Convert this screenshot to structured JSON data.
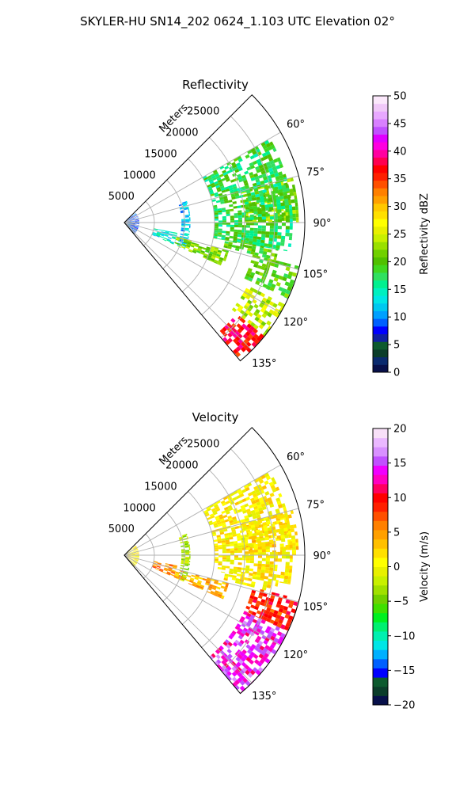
{
  "figure": {
    "title": "SKYLER-HU  SN14_202  0624_1.103 UTC Elevation 02°"
  },
  "chart_data": [
    {
      "type": "heatmap",
      "projection": "polar-sector",
      "title": "Reflectivity",
      "range_label": "Meters",
      "range_ticks": [
        5000,
        10000,
        15000,
        20000,
        25000
      ],
      "range_tick_labels": [
        "5000",
        "10000",
        "15000",
        "20000",
        "25000"
      ],
      "rmax": 30000,
      "azimuth_range_deg": [
        45,
        140
      ],
      "azimuth_ticks": [
        60,
        75,
        90,
        105,
        120,
        135
      ],
      "azimuth_tick_labels": [
        "60°",
        "75°",
        "90°",
        "105°",
        "120°",
        "135°"
      ],
      "grid": true,
      "colorbar": {
        "label": "Reflectivity dBZ",
        "min": 0,
        "max": 50,
        "ticks": [
          0,
          5,
          10,
          15,
          20,
          25,
          30,
          35,
          40,
          45,
          50
        ],
        "tick_labels": [
          "0",
          "5",
          "10",
          "15",
          "20",
          "25",
          "30",
          "35",
          "40",
          "45",
          "50"
        ],
        "colors": [
          "#08104a",
          "#0a2a6e",
          "#0b3d2a",
          "#0d5a2e",
          "#1020a0",
          "#0000ff",
          "#0060ff",
          "#00a0ff",
          "#00c8f0",
          "#00e6e6",
          "#00f0c0",
          "#00f090",
          "#30e060",
          "#40d820",
          "#50c000",
          "#70d000",
          "#9ae000",
          "#c8f000",
          "#e8f000",
          "#ffff00",
          "#ffe000",
          "#ffc800",
          "#ffa000",
          "#ff8000",
          "#ff5000",
          "#ff2000",
          "#ff0000",
          "#ff0050",
          "#ff00a0",
          "#ff00e0",
          "#e000ff",
          "#c050ff",
          "#d880ff",
          "#e8a8ff",
          "#f0c8f8",
          "#fbe8fb"
        ]
      },
      "features": [
        {
          "r": [
            500,
            2500
          ],
          "az": [
            50,
            140
          ],
          "value": 8
        },
        {
          "r": [
            9500,
            11000
          ],
          "az": [
            71,
            114
          ],
          "value": 12
        },
        {
          "r": [
            5000,
            9000
          ],
          "az": [
            101,
            114
          ],
          "value": 14
        },
        {
          "r": [
            9000,
            18000
          ],
          "az": [
            105,
            114
          ],
          "value": 22
        },
        {
          "r": [
            17000,
            26000
          ],
          "az": [
            98,
            104
          ],
          "value": 20
        },
        {
          "r": [
            20000,
            29000
          ],
          "az": [
            75,
            90
          ],
          "value": 22
        },
        {
          "r": [
            22000,
            30000
          ],
          "az": [
            104,
            115
          ],
          "value": 20
        },
        {
          "r": [
            23000,
            30000
          ],
          "az": [
            117,
            129
          ],
          "value": 24
        },
        {
          "r": [
            24000,
            30000
          ],
          "az": [
            129,
            140
          ],
          "value": 37
        },
        {
          "r": [
            15000,
            28000
          ],
          "az": [
            60,
            100
          ],
          "value": 18
        }
      ]
    },
    {
      "type": "heatmap",
      "projection": "polar-sector",
      "title": "Velocity",
      "range_label": "Meters",
      "range_ticks": [
        5000,
        10000,
        15000,
        20000,
        25000
      ],
      "range_tick_labels": [
        "5000",
        "10000",
        "15000",
        "20000",
        "25000"
      ],
      "rmax": 30000,
      "azimuth_range_deg": [
        45,
        140
      ],
      "azimuth_ticks": [
        60,
        75,
        90,
        105,
        120,
        135
      ],
      "azimuth_tick_labels": [
        "60°",
        "75°",
        "90°",
        "105°",
        "120°",
        "135°"
      ],
      "grid": true,
      "colorbar": {
        "label": "Velocity (m/s)",
        "min": -20,
        "max": 20,
        "ticks": [
          -20,
          -15,
          -10,
          -5,
          0,
          5,
          10,
          15,
          20
        ],
        "tick_labels": [
          "−20",
          "−15",
          "−10",
          "−5",
          "0",
          "5",
          "10",
          "15",
          "20"
        ],
        "colors": [
          "#08104a",
          "#0b3d2a",
          "#0d5a2e",
          "#0000ff",
          "#0060ff",
          "#00b0ff",
          "#00e6e6",
          "#00f0b0",
          "#00f070",
          "#00f020",
          "#40e000",
          "#70d000",
          "#a0e000",
          "#c8f000",
          "#e8f000",
          "#ffff00",
          "#ffe000",
          "#ffc000",
          "#ffa000",
          "#ff8000",
          "#ff5000",
          "#ff2000",
          "#ff0000",
          "#ff0060",
          "#ff00c0",
          "#f000ff",
          "#c050ff",
          "#d890ff",
          "#eab8ff",
          "#f8e0f8"
        ]
      },
      "features": [
        {
          "r": [
            500,
            2500
          ],
          "az": [
            50,
            140
          ],
          "value": 1
        },
        {
          "r": [
            9500,
            11000
          ],
          "az": [
            71,
            114
          ],
          "value": -3
        },
        {
          "r": [
            5000,
            9000
          ],
          "az": [
            101,
            114
          ],
          "value": 6
        },
        {
          "r": [
            9000,
            18000
          ],
          "az": [
            105,
            114
          ],
          "value": 4
        },
        {
          "r": [
            17000,
            26000
          ],
          "az": [
            98,
            104
          ],
          "value": 1
        },
        {
          "r": [
            20000,
            29000
          ],
          "az": [
            75,
            90
          ],
          "value": 2
        },
        {
          "r": [
            22000,
            30000
          ],
          "az": [
            104,
            115
          ],
          "value": 9
        },
        {
          "r": [
            22000,
            30000
          ],
          "az": [
            115,
            140
          ],
          "value": 14
        },
        {
          "r": [
            15000,
            28000
          ],
          "az": [
            60,
            100
          ],
          "value": 1
        }
      ]
    }
  ]
}
